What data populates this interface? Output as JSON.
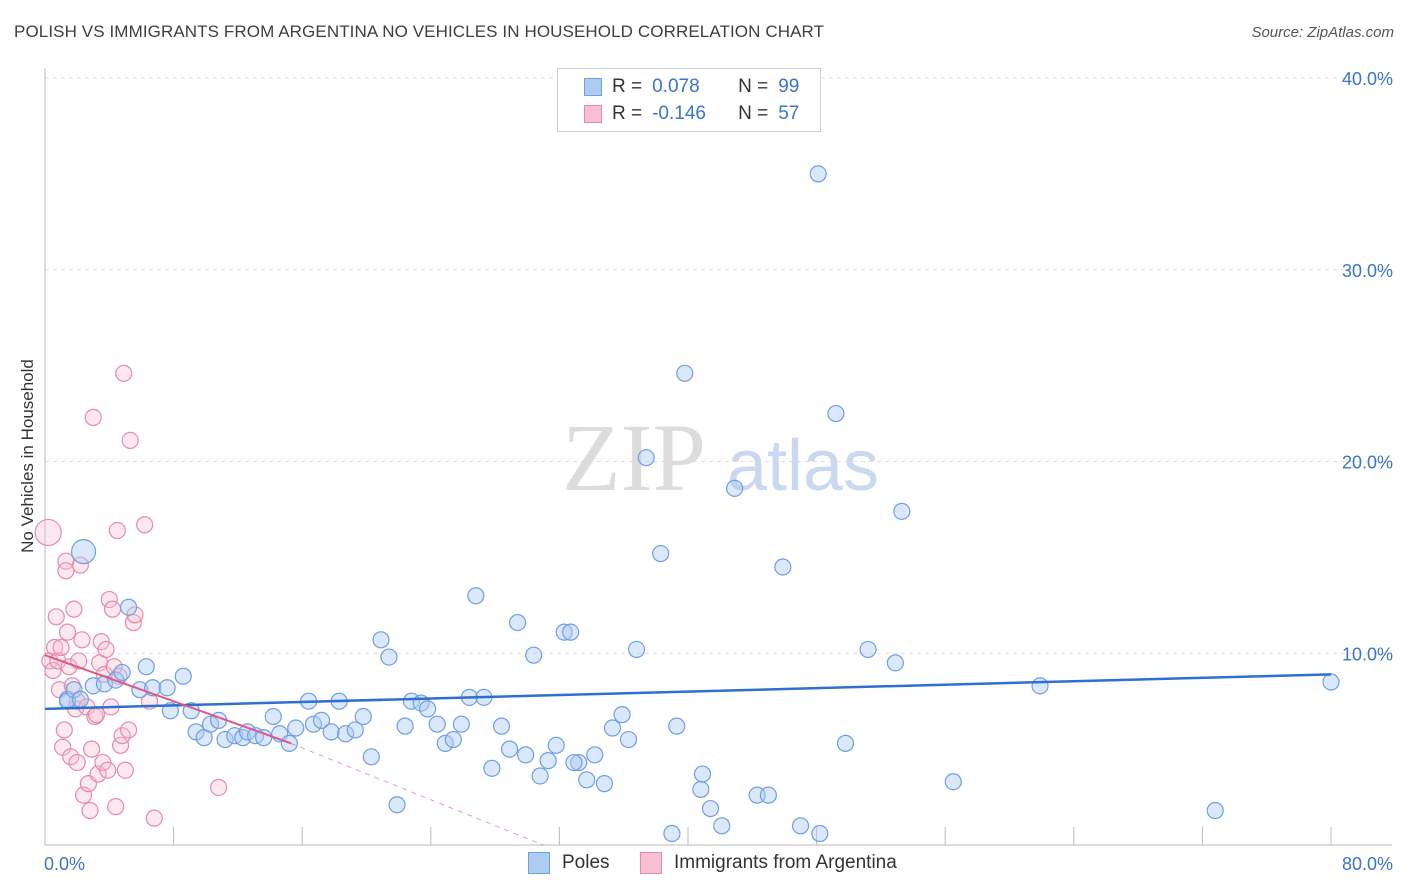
{
  "header": {
    "title": "POLISH VS IMMIGRANTS FROM ARGENTINA NO VEHICLES IN HOUSEHOLD CORRELATION CHART",
    "source": "Source: ZipAtlas.com"
  },
  "watermark": {
    "zip": "ZIP",
    "atlas": "atlas"
  },
  "legend": {
    "rows": [
      {
        "r_label": "R =",
        "r_value": "0.078",
        "n_label": "N =",
        "n_value": "99",
        "color": "#aecbf2",
        "border": "#6e9fe0"
      },
      {
        "r_label": "R =",
        "r_value": "-0.146",
        "n_label": "N =",
        "n_value": "57",
        "color": "#f7bfd1",
        "border": "#e889a8"
      }
    ]
  },
  "bottom_legend": {
    "poles": "Poles",
    "argentina": "Immigrants from Argentina"
  },
  "colors": {
    "poles_fill": "rgba(174,203,242,0.45)",
    "poles_stroke": "#6e9fe0",
    "poles_line": "#2f6fcf",
    "arg_fill": "rgba(247,191,209,0.35)",
    "arg_stroke": "#e889a8",
    "arg_line": "#e0578a",
    "axis_label": "#3b74c8"
  },
  "chart_data": {
    "type": "scatter",
    "title": "POLISH VS IMMIGRANTS FROM ARGENTINA NO VEHICLES IN HOUSEHOLD CORRELATION CHART",
    "xlabel": "",
    "ylabel": "No Vehicles in Household",
    "xlim": [
      0,
      80
    ],
    "ylim": [
      0,
      40
    ],
    "x_tick_labels": [
      "0.0%",
      "80.0%"
    ],
    "y_ticks": [
      10,
      20,
      30,
      40
    ],
    "y_tick_labels": [
      "10.0%",
      "20.0%",
      "30.0%",
      "40.0%"
    ],
    "grid": true,
    "legend_position": "top-center",
    "series": [
      {
        "name": "Poles",
        "points": [
          [
            2.4,
            15.3
          ],
          [
            1.4,
            7.6
          ],
          [
            1.4,
            7.5
          ],
          [
            1.8,
            8.1
          ],
          [
            2.2,
            7.6
          ],
          [
            3.0,
            8.3
          ],
          [
            3.7,
            8.4
          ],
          [
            4.4,
            8.6
          ],
          [
            4.8,
            9.0
          ],
          [
            5.2,
            12.4
          ],
          [
            5.9,
            8.1
          ],
          [
            6.3,
            9.3
          ],
          [
            6.7,
            8.2
          ],
          [
            7.6,
            8.2
          ],
          [
            7.8,
            7.0
          ],
          [
            8.6,
            8.8
          ],
          [
            9.1,
            7.0
          ],
          [
            9.4,
            5.9
          ],
          [
            9.9,
            5.6
          ],
          [
            10.3,
            6.3
          ],
          [
            10.8,
            6.5
          ],
          [
            11.2,
            5.5
          ],
          [
            11.8,
            5.7
          ],
          [
            12.3,
            5.6
          ],
          [
            12.6,
            5.9
          ],
          [
            13.1,
            5.7
          ],
          [
            13.6,
            5.6
          ],
          [
            14.2,
            6.7
          ],
          [
            14.6,
            5.8
          ],
          [
            15.2,
            5.3
          ],
          [
            15.6,
            6.1
          ],
          [
            16.4,
            7.5
          ],
          [
            16.7,
            6.3
          ],
          [
            17.2,
            6.5
          ],
          [
            17.8,
            5.9
          ],
          [
            18.3,
            7.5
          ],
          [
            18.7,
            5.8
          ],
          [
            19.3,
            6.0
          ],
          [
            19.8,
            6.7
          ],
          [
            20.3,
            4.6
          ],
          [
            20.9,
            10.7
          ],
          [
            21.4,
            9.8
          ],
          [
            21.9,
            2.1
          ],
          [
            22.4,
            6.2
          ],
          [
            22.8,
            7.5
          ],
          [
            23.4,
            7.4
          ],
          [
            23.8,
            7.1
          ],
          [
            24.4,
            6.3
          ],
          [
            24.9,
            5.3
          ],
          [
            25.4,
            5.5
          ],
          [
            25.9,
            6.3
          ],
          [
            26.4,
            7.7
          ],
          [
            26.8,
            13.0
          ],
          [
            27.3,
            7.7
          ],
          [
            27.8,
            4.0
          ],
          [
            28.4,
            6.2
          ],
          [
            28.9,
            5.0
          ],
          [
            29.4,
            11.6
          ],
          [
            29.9,
            4.7
          ],
          [
            30.4,
            9.9
          ],
          [
            30.8,
            3.6
          ],
          [
            31.3,
            4.4
          ],
          [
            31.8,
            5.2
          ],
          [
            32.3,
            11.1
          ],
          [
            32.7,
            11.1
          ],
          [
            33.2,
            4.3
          ],
          [
            33.7,
            3.4
          ],
          [
            34.2,
            4.7
          ],
          [
            34.8,
            3.2
          ],
          [
            35.3,
            6.1
          ],
          [
            35.9,
            6.8
          ],
          [
            36.3,
            5.5
          ],
          [
            36.8,
            10.2
          ],
          [
            37.4,
            20.2
          ],
          [
            38.3,
            15.2
          ],
          [
            39.0,
            0.6
          ],
          [
            39.3,
            6.2
          ],
          [
            39.8,
            24.6
          ],
          [
            40.8,
            2.9
          ],
          [
            40.9,
            3.7
          ],
          [
            41.4,
            1.9
          ],
          [
            42.1,
            1.0
          ],
          [
            42.9,
            18.6
          ],
          [
            44.3,
            2.6
          ],
          [
            45.0,
            2.6
          ],
          [
            45.9,
            14.5
          ],
          [
            47.0,
            1.0
          ],
          [
            48.2,
            0.6
          ],
          [
            48.1,
            35.0
          ],
          [
            49.2,
            22.5
          ],
          [
            49.8,
            5.3
          ],
          [
            51.2,
            10.2
          ],
          [
            52.9,
            9.5
          ],
          [
            53.3,
            17.4
          ],
          [
            56.5,
            3.3
          ],
          [
            61.9,
            8.3
          ],
          [
            72.8,
            1.8
          ],
          [
            80.0,
            8.5
          ],
          [
            32.9,
            4.3
          ]
        ]
      },
      {
        "name": "Immigrants from Argentina",
        "points": [
          [
            0.2,
            16.3
          ],
          [
            0.3,
            9.6
          ],
          [
            0.5,
            9.1
          ],
          [
            0.6,
            10.3
          ],
          [
            0.7,
            11.9
          ],
          [
            0.8,
            9.6
          ],
          [
            0.9,
            8.1
          ],
          [
            1.0,
            10.3
          ],
          [
            1.1,
            5.1
          ],
          [
            1.2,
            6.0
          ],
          [
            1.3,
            14.8
          ],
          [
            1.3,
            14.3
          ],
          [
            1.4,
            11.1
          ],
          [
            1.5,
            9.3
          ],
          [
            1.6,
            4.6
          ],
          [
            1.7,
            8.3
          ],
          [
            1.8,
            12.3
          ],
          [
            1.9,
            7.1
          ],
          [
            2.0,
            7.5
          ],
          [
            2.0,
            4.3
          ],
          [
            2.1,
            9.6
          ],
          [
            2.2,
            14.6
          ],
          [
            2.3,
            10.7
          ],
          [
            2.4,
            2.6
          ],
          [
            2.6,
            7.2
          ],
          [
            2.7,
            3.2
          ],
          [
            2.8,
            1.8
          ],
          [
            2.9,
            5.0
          ],
          [
            3.0,
            22.3
          ],
          [
            3.1,
            6.7
          ],
          [
            3.2,
            6.8
          ],
          [
            3.3,
            3.7
          ],
          [
            3.4,
            9.5
          ],
          [
            3.5,
            10.6
          ],
          [
            3.6,
            4.3
          ],
          [
            3.7,
            8.9
          ],
          [
            3.8,
            10.2
          ],
          [
            3.9,
            3.9
          ],
          [
            4.0,
            12.8
          ],
          [
            4.1,
            7.2
          ],
          [
            4.2,
            12.3
          ],
          [
            4.3,
            9.3
          ],
          [
            4.4,
            2.0
          ],
          [
            4.5,
            16.4
          ],
          [
            4.6,
            8.8
          ],
          [
            4.7,
            5.2
          ],
          [
            4.8,
            5.7
          ],
          [
            4.9,
            24.6
          ],
          [
            5.0,
            3.9
          ],
          [
            5.2,
            6.0
          ],
          [
            5.3,
            21.1
          ],
          [
            5.5,
            11.6
          ],
          [
            5.6,
            12.0
          ],
          [
            6.2,
            16.7
          ],
          [
            6.5,
            7.5
          ],
          [
            6.8,
            1.4
          ],
          [
            10.8,
            3.0
          ]
        ]
      }
    ],
    "trend_lines": [
      {
        "series": "Poles",
        "from": [
          0,
          7.1
        ],
        "to": [
          80,
          8.9
        ]
      },
      {
        "series": "Immigrants from Argentina",
        "from": [
          0,
          9.9
        ],
        "to": [
          15.3,
          5.3
        ],
        "dashed_to": [
          31.0,
          0
        ]
      }
    ]
  }
}
